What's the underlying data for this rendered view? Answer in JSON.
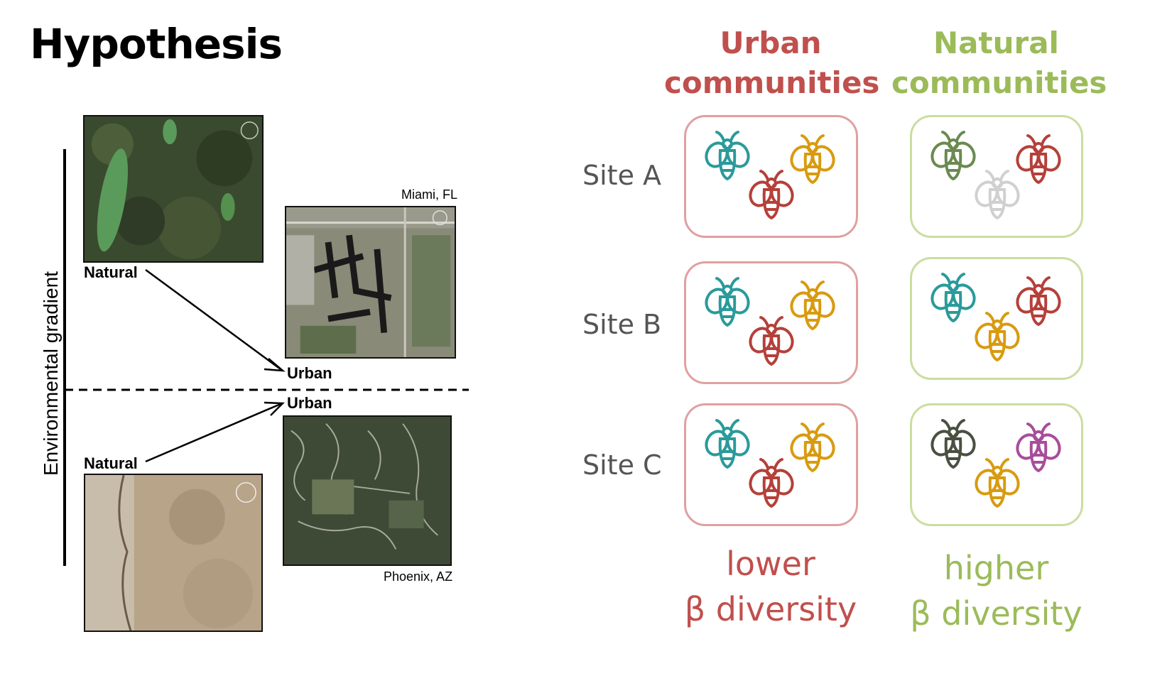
{
  "title": "Hypothesis",
  "figure": {
    "axis_label": "Environmental gradient",
    "top_city": "Miami, FL",
    "bottom_city": "Phoenix, AZ",
    "natural_top": "Natural",
    "urban_top": "Urban",
    "urban_bottom": "Urban",
    "natural_bottom": "Natural"
  },
  "columns": {
    "urban": {
      "line1": "Urban",
      "line2": "communities",
      "color": "#c0504d"
    },
    "natural": {
      "line1": "Natural",
      "line2": "communities",
      "color": "#9bbb59"
    }
  },
  "sites": [
    "Site A",
    "Site B",
    "Site C"
  ],
  "footers": {
    "urban": {
      "line1": "lower",
      "line2": "β diversity"
    },
    "natural": {
      "line1": "higher",
      "line2": "β diversity"
    }
  },
  "colors": {
    "urban_box": "#e0a0a0",
    "natural_box": "#c9dea0",
    "teal": "#2a9a9a",
    "orange": "#d89b10",
    "red": "#b5403a",
    "olive": "#6a8a50",
    "lightgray": "#d0d0d0",
    "darkolive": "#4a5040",
    "purple": "#a84d9a"
  },
  "communities": {
    "urban": [
      [
        "teal",
        "red",
        "orange"
      ],
      [
        "teal",
        "red",
        "orange"
      ],
      [
        "teal",
        "red",
        "orange"
      ]
    ],
    "natural": [
      [
        "olive",
        "lightgray",
        "red"
      ],
      [
        "teal",
        "orange",
        "red"
      ],
      [
        "darkolive",
        "orange",
        "purple"
      ]
    ]
  }
}
